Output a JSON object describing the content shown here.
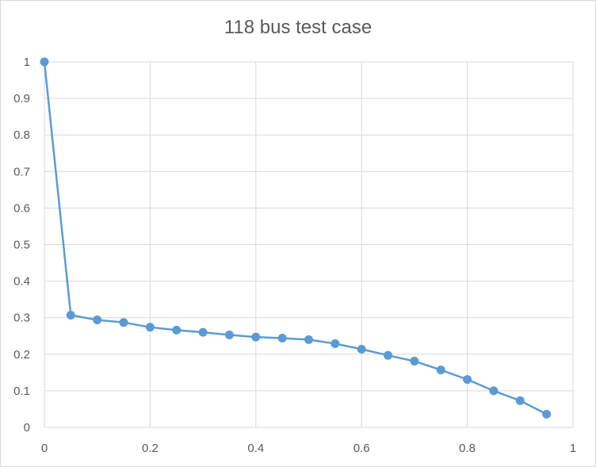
{
  "chart_data": {
    "type": "scatter",
    "title": "118 bus test case",
    "xlabel": "",
    "ylabel": "",
    "xlim": [
      0,
      1
    ],
    "ylim": [
      0,
      1
    ],
    "xticks": [
      "0",
      "0.2",
      "0.4",
      "0.6",
      "0.8",
      "1"
    ],
    "yticks": [
      "0",
      "0.1",
      "0.2",
      "0.3",
      "0.4",
      "0.5",
      "0.6",
      "0.7",
      "0.8",
      "0.9",
      "1"
    ],
    "grid": true,
    "legend": "none",
    "series": [
      {
        "color": "#5b9bd5",
        "x": [
          0,
          0.05,
          0.1,
          0.15,
          0.2,
          0.25,
          0.3,
          0.35,
          0.4,
          0.45,
          0.5,
          0.55,
          0.6,
          0.65,
          0.7,
          0.75,
          0.8,
          0.85,
          0.9,
          0.95
        ],
        "y": [
          1,
          0.307,
          0.294,
          0.287,
          0.274,
          0.266,
          0.26,
          0.253,
          0.247,
          0.244,
          0.24,
          0.229,
          0.214,
          0.197,
          0.181,
          0.157,
          0.131,
          0.1,
          0.073,
          0.036
        ]
      }
    ],
    "colors": {
      "line": "#5b9bd5",
      "grid": "#d9d9d9",
      "text": "#595959"
    }
  }
}
